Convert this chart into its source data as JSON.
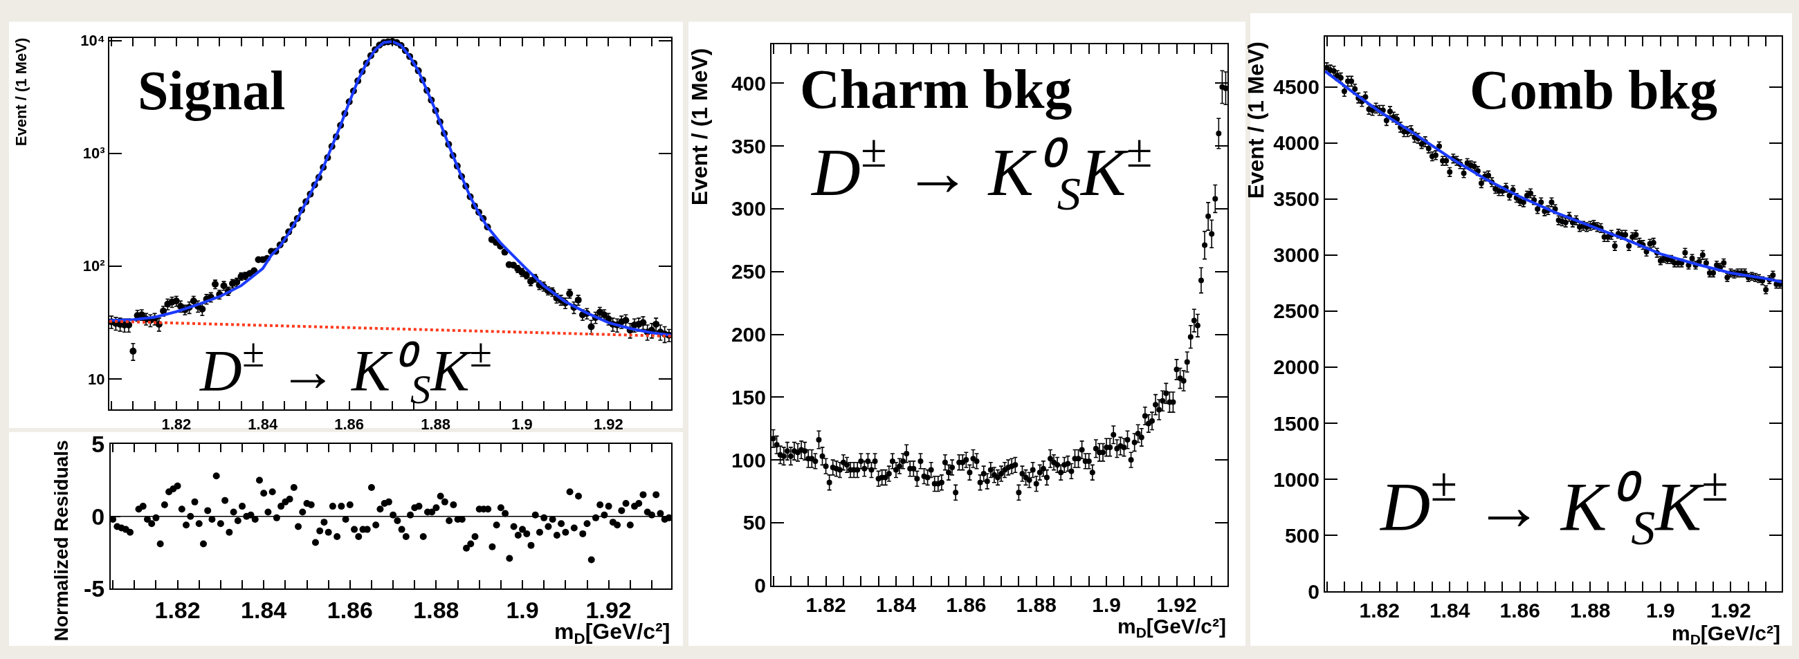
{
  "chart_data": [
    {
      "type": "scatter",
      "title": "Signal",
      "annotations": [
        "D$^{±}$ → K⁰$_{S}$K$^{±}$"
      ],
      "ylabel": "Event / (1 MeV)",
      "log": true,
      "x": [
        1.805,
        1.806,
        1.807,
        1.808,
        1.809,
        1.81,
        1.811,
        1.812,
        1.813,
        1.814,
        1.815,
        1.816,
        1.817,
        1.818,
        1.819,
        1.82,
        1.821,
        1.822,
        1.823,
        1.824,
        1.825,
        1.826,
        1.827,
        1.828,
        1.829,
        1.83,
        1.831,
        1.832,
        1.833,
        1.834,
        1.835,
        1.836,
        1.837,
        1.838,
        1.839,
        1.84,
        1.841,
        1.842,
        1.843,
        1.844,
        1.845,
        1.846,
        1.847,
        1.848,
        1.849,
        1.85,
        1.851,
        1.852,
        1.853,
        1.854,
        1.855,
        1.856,
        1.857,
        1.858,
        1.859,
        1.86,
        1.861,
        1.862,
        1.863,
        1.864,
        1.865,
        1.866,
        1.867,
        1.868,
        1.869,
        1.87,
        1.871,
        1.872,
        1.873,
        1.874,
        1.875,
        1.876,
        1.877,
        1.878,
        1.879,
        1.88,
        1.881,
        1.882,
        1.883,
        1.884,
        1.885,
        1.886,
        1.887,
        1.888,
        1.889,
        1.89,
        1.891,
        1.892,
        1.893,
        1.894,
        1.895,
        1.896,
        1.897,
        1.898,
        1.899,
        1.9,
        1.901,
        1.902,
        1.903,
        1.904,
        1.905,
        1.906,
        1.907,
        1.908,
        1.909,
        1.91,
        1.911,
        1.912,
        1.913,
        1.914,
        1.915,
        1.916,
        1.917,
        1.918,
        1.919,
        1.92,
        1.921,
        1.922,
        1.923,
        1.924,
        1.925,
        1.926,
        1.927,
        1.928,
        1.929,
        1.93,
        1.931,
        1.932,
        1.933,
        1.934
      ],
      "xlim": [
        1.8045,
        1.9345
      ],
      "xticks": [
        {
          "value": 1.805,
          "label": null
        },
        {
          "value": 1.81,
          "label": null
        },
        {
          "value": 1.815,
          "label": null
        },
        1.82,
        {
          "value": 1.825,
          "label": null
        },
        {
          "value": 1.83,
          "label": null
        },
        {
          "value": 1.835,
          "label": null
        },
        1.84,
        {
          "value": 1.845,
          "label": null
        },
        {
          "value": 1.85,
          "label": null
        },
        {
          "value": 1.855,
          "label": null
        },
        1.86,
        {
          "value": 1.865,
          "label": null
        },
        {
          "value": 1.87,
          "label": null
        },
        {
          "value": 1.875,
          "label": null
        },
        1.88,
        {
          "value": 1.885,
          "label": null
        },
        {
          "value": 1.89,
          "label": null
        },
        {
          "value": 1.895,
          "label": null
        },
        1.9,
        {
          "value": 1.905,
          "label": null
        },
        {
          "value": 1.91,
          "label": null
        },
        {
          "value": 1.915,
          "label": null
        },
        1.92,
        {
          "value": 1.925,
          "label": null
        },
        {
          "value": 1.93,
          "label": null
        }
      ],
      "ylim": [
        5.35,
        10450
      ],
      "yticks": [
        10,
        {
          "value": 100,
          "label": "10²"
        },
        {
          "value": 1000,
          "label": "10³"
        },
        {
          "value": 10000,
          "label": "10⁴"
        }
      ],
      "series": [
        {
          "color": "#000000",
          "marker": "circle",
          "values": [
            32,
            31,
            30.5,
            30,
            30,
            17.6,
            36.5,
            37,
            34,
            33,
            34,
            30.5,
            40,
            46,
            48,
            49,
            44,
            41,
            43,
            49,
            44,
            41.5,
            51,
            53,
            69,
            56,
            67,
            60,
            70,
            72,
            81,
            82,
            86,
            91,
            114,
            114,
            117,
            135,
            135,
            154,
            172,
            201,
            232,
            264,
            314,
            372,
            434,
            524,
            611,
            751,
            915,
            1150,
            1400,
            1770,
            2250,
            2860,
            3570,
            4390,
            5300,
            6290,
            7340,
            8280,
            9100,
            9600,
            9750,
            9800,
            9600,
            9050,
            8150,
            7220,
            6290,
            5390,
            4470,
            3610,
            2960,
            2390,
            1900,
            1500,
            1200,
            955,
            771,
            622,
            511,
            412,
            341,
            300,
            264,
            222,
            172,
            162,
            150,
            133,
            103,
            102,
            94.5,
            88,
            83,
            73,
            78,
            68,
            66,
            60.5,
            59,
            52,
            50,
            47,
            57,
            43,
            50,
            37,
            38,
            29,
            35,
            39,
            37,
            34,
            30.5,
            30,
            32,
            33,
            27,
            30,
            30.5,
            31.5,
            26,
            27,
            30.5,
            26,
            25,
            24.4
          ],
          "errors": [
            4,
            4,
            4,
            4,
            4,
            3,
            4,
            4,
            4,
            4,
            4,
            4,
            4,
            5,
            5,
            5,
            5,
            4,
            5,
            5,
            5,
            5,
            5,
            5,
            6,
            5,
            6,
            5,
            6,
            6,
            6,
            6,
            null,
            null,
            null,
            null,
            null,
            null,
            null,
            null,
            null,
            null,
            null,
            null,
            null,
            null,
            null,
            null,
            null,
            null,
            null,
            null,
            null,
            null,
            null,
            null,
            null,
            null,
            null,
            null,
            null,
            null,
            null,
            null,
            null,
            null,
            null,
            null,
            null,
            null,
            null,
            null,
            null,
            null,
            null,
            null,
            null,
            null,
            null,
            null,
            null,
            null,
            null,
            null,
            null,
            null,
            null,
            null,
            null,
            null,
            null,
            null,
            null,
            null,
            7,
            7,
            6,
            6,
            6,
            6,
            6,
            5,
            5,
            5,
            5,
            5,
            5,
            5,
            5,
            4,
            4,
            4,
            4,
            4,
            4,
            4,
            4,
            4,
            4,
            4,
            4,
            4,
            4,
            4,
            4,
            4,
            4,
            4,
            4,
            3
          ]
        },
        {
          "type": "line",
          "color": "#1b3bff",
          "line_style": "solid",
          "x": [
            1.8045,
            1.81,
            1.815,
            1.82,
            1.825,
            1.83,
            1.835,
            1.84,
            1.842,
            1.844,
            1.846,
            1.848,
            1.85,
            1.852,
            1.854,
            1.856,
            1.858,
            1.86,
            1.862,
            1.864,
            1.866,
            1.868,
            1.87,
            1.872,
            1.874,
            1.876,
            1.878,
            1.88,
            1.882,
            1.884,
            1.886,
            1.888,
            1.89,
            1.892,
            1.895,
            1.9,
            1.905,
            1.91,
            1.915,
            1.92,
            1.925,
            1.93,
            1.9345
          ],
          "values": [
            32.9,
            33.5,
            35.2,
            39.4,
            45.6,
            53.6,
            67,
            95,
            125,
            150,
            195,
            262,
            366,
            520,
            750,
            1150,
            1770,
            2820,
            4390,
            6290,
            8280,
            9600,
            9800,
            9050,
            7220,
            5390,
            3610,
            2390,
            1500,
            955,
            622,
            412,
            295,
            222,
            161,
            103,
            67,
            48.4,
            38.4,
            31.5,
            28,
            25.6,
            24.4
          ]
        },
        {
          "type": "line",
          "color": "#ff3b1f",
          "line_style": "dotted",
          "x": [
            1.8045,
            1.9345
          ],
          "values": [
            32.4,
            23.9
          ]
        }
      ]
    },
    {
      "type": "scatter",
      "xlabel": "m$_{D}$[GeV/c²]",
      "ylabel": "Normalized Residuals",
      "marker": "circle",
      "color": "#000000",
      "x": [
        1.805,
        1.806,
        1.807,
        1.808,
        1.809,
        1.81,
        1.811,
        1.812,
        1.813,
        1.814,
        1.815,
        1.816,
        1.817,
        1.818,
        1.819,
        1.82,
        1.821,
        1.822,
        1.823,
        1.824,
        1.825,
        1.826,
        1.827,
        1.828,
        1.829,
        1.83,
        1.831,
        1.832,
        1.833,
        1.834,
        1.835,
        1.836,
        1.837,
        1.838,
        1.839,
        1.84,
        1.841,
        1.842,
        1.843,
        1.844,
        1.845,
        1.846,
        1.847,
        1.848,
        1.849,
        1.85,
        1.851,
        1.852,
        1.853,
        1.854,
        1.855,
        1.856,
        1.857,
        1.858,
        1.859,
        1.86,
        1.861,
        1.862,
        1.863,
        1.864,
        1.865,
        1.866,
        1.867,
        1.868,
        1.869,
        1.87,
        1.871,
        1.872,
        1.873,
        1.874,
        1.875,
        1.876,
        1.877,
        1.878,
        1.879,
        1.88,
        1.881,
        1.882,
        1.883,
        1.884,
        1.885,
        1.886,
        1.887,
        1.888,
        1.889,
        1.89,
        1.891,
        1.892,
        1.893,
        1.894,
        1.895,
        1.896,
        1.897,
        1.898,
        1.899,
        1.9,
        1.901,
        1.902,
        1.903,
        1.904,
        1.905,
        1.906,
        1.907,
        1.908,
        1.909,
        1.91,
        1.911,
        1.912,
        1.913,
        1.914,
        1.915,
        1.916,
        1.917,
        1.918,
        1.919,
        1.92,
        1.921,
        1.922,
        1.923,
        1.924,
        1.925,
        1.926,
        1.927,
        1.928,
        1.929,
        1.93,
        1.931,
        1.932,
        1.933,
        1.934
      ],
      "values": [
        -0.2,
        -0.7,
        -0.8,
        -0.9,
        -1.1,
        null,
        0.5,
        0.7,
        -0.2,
        -0.5,
        -0.1,
        -1.9,
        0.8,
        1.7,
        1.9,
        2.1,
        0.5,
        -0.6,
        0.0,
        1.0,
        -0.5,
        -1.9,
        0.4,
        -0.2,
        2.8,
        -0.5,
        1.1,
        -1.1,
        0.3,
        -0.3,
        0.7,
        0.0,
        0.1,
        -0.2,
        2.5,
        1.6,
        0.3,
        1.7,
        -0.1,
        0.7,
        1.0,
        1.2,
        2.0,
        -0.7,
        0.3,
        0.9,
        0.8,
        -1.8,
        -1.0,
        -0.4,
        -1.1,
        0.7,
        -1.4,
        0.7,
        -0.2,
        0.8,
        -0.9,
        -1.4,
        -0.9,
        -0.9,
        2.0,
        -0.6,
        0.5,
        0.9,
        1.0,
        0.1,
        -0.3,
        -0.9,
        -1.4,
        0.1,
        0.6,
        0.7,
        -1.4,
        0.3,
        0.3,
        0.6,
        1.4,
        1.0,
        -0.3,
        0.8,
        -0.2,
        -0.2,
        -2.2,
        -1.9,
        -1.4,
        0.5,
        0.5,
        0.5,
        -2.1,
        -0.6,
        0.6,
        0.2,
        -2.9,
        -0.7,
        -1.3,
        -0.9,
        -1.2,
        -2.0,
        0.1,
        -1.1,
        -0.1,
        -0.7,
        -0.2,
        -1.3,
        -0.5,
        -1.1,
        1.7,
        -0.8,
        1.4,
        -1.2,
        -0.5,
        -3.0,
        -0.1,
        0.8,
        0.1,
        0.7,
        -0.4,
        -0.6,
        0.4,
        0.9,
        -0.6,
        0.7,
        0.9,
        1.5,
        0.3,
        0.1,
        1.5,
        0.2,
        -0.2,
        -0.1
      ],
      "xlim": [
        1.8045,
        1.9345
      ],
      "xticks": [
        {
          "value": 1.805,
          "label": null
        },
        {
          "value": 1.81,
          "label": null
        },
        {
          "value": 1.815,
          "label": null
        },
        1.82,
        {
          "value": 1.825,
          "label": null
        },
        {
          "value": 1.83,
          "label": null
        },
        {
          "value": 1.835,
          "label": null
        },
        1.84,
        {
          "value": 1.845,
          "label": null
        },
        {
          "value": 1.85,
          "label": null
        },
        {
          "value": 1.855,
          "label": null
        },
        1.86,
        {
          "value": 1.865,
          "label": null
        },
        {
          "value": 1.87,
          "label": null
        },
        {
          "value": 1.875,
          "label": null
        },
        1.88,
        {
          "value": 1.885,
          "label": null
        },
        {
          "value": 1.89,
          "label": null
        },
        {
          "value": 1.895,
          "label": null
        },
        1.9,
        {
          "value": 1.905,
          "label": null
        },
        {
          "value": 1.91,
          "label": null
        },
        {
          "value": 1.915,
          "label": null
        },
        1.92,
        {
          "value": 1.925,
          "label": null
        },
        {
          "value": 1.93,
          "label": null
        }
      ],
      "ylim": [
        -5,
        5
      ],
      "yticks": [
        -5,
        0,
        5
      ],
      "ref_lines": [
        {
          "axis": "y",
          "value": 0,
          "color": "#000000"
        }
      ]
    },
    {
      "type": "scatter",
      "title": "Charm bkg",
      "annotations": [
        "D$^{±}$ → K⁰$_{S}$K$^{±}$"
      ],
      "xlabel": "m$_{D}$[GeV/c²]",
      "ylabel": "Event / (1 MeV)",
      "marker": "circle",
      "color": "#000000",
      "x": [
        1.805,
        1.806,
        1.807,
        1.808,
        1.809,
        1.81,
        1.811,
        1.812,
        1.813,
        1.814,
        1.815,
        1.816,
        1.817,
        1.818,
        1.819,
        1.82,
        1.821,
        1.822,
        1.823,
        1.824,
        1.825,
        1.826,
        1.827,
        1.828,
        1.829,
        1.83,
        1.831,
        1.832,
        1.833,
        1.834,
        1.835,
        1.836,
        1.837,
        1.838,
        1.839,
        1.84,
        1.841,
        1.842,
        1.843,
        1.844,
        1.845,
        1.846,
        1.847,
        1.848,
        1.849,
        1.85,
        1.851,
        1.852,
        1.853,
        1.854,
        1.855,
        1.856,
        1.857,
        1.858,
        1.859,
        1.86,
        1.861,
        1.862,
        1.863,
        1.864,
        1.865,
        1.866,
        1.867,
        1.868,
        1.869,
        1.87,
        1.871,
        1.872,
        1.873,
        1.874,
        1.875,
        1.876,
        1.877,
        1.878,
        1.879,
        1.88,
        1.881,
        1.882,
        1.883,
        1.884,
        1.885,
        1.886,
        1.887,
        1.888,
        1.889,
        1.89,
        1.891,
        1.892,
        1.893,
        1.894,
        1.895,
        1.896,
        1.897,
        1.898,
        1.899,
        1.9,
        1.901,
        1.902,
        1.903,
        1.904,
        1.905,
        1.906,
        1.907,
        1.908,
        1.909,
        1.91,
        1.911,
        1.912,
        1.913,
        1.914,
        1.915,
        1.916,
        1.917,
        1.918,
        1.919,
        1.92,
        1.921,
        1.922,
        1.923,
        1.924,
        1.925,
        1.926,
        1.927,
        1.928,
        1.929,
        1.93,
        1.931,
        1.932,
        1.933,
        1.934
      ],
      "values": [
        117,
        112,
        104,
        103,
        107,
        103,
        107,
        106,
        108,
        107,
        101,
        101,
        99,
        116,
        103,
        95,
        82,
        94,
        93,
        92,
        98,
        96,
        92,
        92,
        92,
        99,
        93,
        99,
        92,
        99,
        85,
        86,
        86,
        89,
        99,
        92,
        95,
        99,
        105,
        93,
        93,
        85,
        99,
        87,
        86,
        92,
        81,
        81,
        82,
        98,
        90,
        94,
        74,
        98,
        98,
        100,
        90,
        101,
        99,
        82,
        89,
        83,
        92,
        88,
        86,
        89,
        92,
        94,
        95,
        96,
        74,
        89,
        86,
        84,
        92,
        81,
        90,
        93,
        86,
        101,
        98,
        96,
        90,
        96,
        97,
        91,
        101,
        101,
        108,
        99,
        99,
        90,
        109,
        106,
        106,
        110,
        110,
        120,
        109,
        111,
        110,
        116,
        100,
        114,
        121,
        118,
        135,
        129,
        131,
        144,
        140,
        147,
        153,
        146,
        146,
        172,
        165,
        163,
        178,
        198,
        211,
        207,
        243,
        271,
        294,
        280,
        308,
        360,
        397,
        396
      ],
      "errors": [
        7,
        7,
        7,
        7,
        7,
        7,
        7,
        7,
        7,
        7,
        7,
        7,
        6,
        7,
        7,
        6,
        6,
        6,
        6,
        6,
        6,
        6,
        6,
        6,
        6,
        6,
        6,
        6,
        6,
        6,
        6,
        6,
        6,
        6,
        6,
        6,
        6,
        6,
        7,
        6,
        6,
        6,
        6,
        6,
        6,
        6,
        6,
        6,
        6,
        6,
        6,
        6,
        6,
        6,
        6,
        6,
        6,
        7,
        6,
        6,
        6,
        6,
        6,
        6,
        6,
        6,
        6,
        6,
        6,
        6,
        6,
        6,
        6,
        6,
        6,
        6,
        6,
        6,
        6,
        7,
        6,
        6,
        6,
        6,
        6,
        6,
        7,
        7,
        7,
        6,
        6,
        6,
        7,
        7,
        7,
        7,
        7,
        7,
        7,
        7,
        7,
        7,
        6,
        7,
        7,
        7,
        7,
        7,
        7,
        8,
        8,
        8,
        8,
        8,
        8,
        8,
        8,
        8,
        8,
        9,
        9,
        9,
        10,
        11,
        11,
        11,
        11,
        12,
        13,
        13
      ],
      "xlim": [
        1.8045,
        1.9345
      ],
      "xticks": [
        {
          "value": 1.805,
          "label": null
        },
        {
          "value": 1.81,
          "label": null
        },
        {
          "value": 1.815,
          "label": null
        },
        1.82,
        {
          "value": 1.825,
          "label": null
        },
        {
          "value": 1.83,
          "label": null
        },
        {
          "value": 1.835,
          "label": null
        },
        1.84,
        {
          "value": 1.845,
          "label": null
        },
        {
          "value": 1.85,
          "label": null
        },
        {
          "value": 1.855,
          "label": null
        },
        1.86,
        {
          "value": 1.865,
          "label": null
        },
        {
          "value": 1.87,
          "label": null
        },
        {
          "value": 1.875,
          "label": null
        },
        1.88,
        {
          "value": 1.885,
          "label": null
        },
        {
          "value": 1.89,
          "label": null
        },
        {
          "value": 1.895,
          "label": null
        },
        1.9,
        {
          "value": 1.905,
          "label": null
        },
        {
          "value": 1.91,
          "label": null
        },
        {
          "value": 1.915,
          "label": null
        },
        1.92,
        {
          "value": 1.925,
          "label": null
        },
        {
          "value": 1.93,
          "label": null
        }
      ],
      "ylim": [
        0,
        431
      ],
      "yticks": [
        0,
        50,
        100,
        150,
        200,
        250,
        300,
        350,
        400
      ]
    },
    {
      "type": "scatter",
      "title": "Comb bkg",
      "annotations": [
        "D$^{±}$ → K⁰$_{S}$K$^{±}$"
      ],
      "xlabel": "m$_{D}$[GeV/c²]",
      "ylabel": "Event / (1 MeV)",
      "x": [
        1.805,
        1.806,
        1.807,
        1.808,
        1.809,
        1.81,
        1.811,
        1.812,
        1.813,
        1.814,
        1.815,
        1.816,
        1.817,
        1.818,
        1.819,
        1.82,
        1.821,
        1.822,
        1.823,
        1.824,
        1.825,
        1.826,
        1.827,
        1.828,
        1.829,
        1.83,
        1.831,
        1.832,
        1.833,
        1.834,
        1.835,
        1.836,
        1.837,
        1.838,
        1.839,
        1.84,
        1.841,
        1.842,
        1.843,
        1.844,
        1.845,
        1.846,
        1.847,
        1.848,
        1.849,
        1.85,
        1.851,
        1.852,
        1.853,
        1.854,
        1.855,
        1.856,
        1.857,
        1.858,
        1.859,
        1.86,
        1.861,
        1.862,
        1.863,
        1.864,
        1.865,
        1.866,
        1.867,
        1.868,
        1.869,
        1.87,
        1.871,
        1.872,
        1.873,
        1.874,
        1.875,
        1.876,
        1.877,
        1.878,
        1.879,
        1.88,
        1.881,
        1.882,
        1.883,
        1.884,
        1.885,
        1.886,
        1.887,
        1.888,
        1.889,
        1.89,
        1.891,
        1.892,
        1.893,
        1.894,
        1.895,
        1.896,
        1.897,
        1.898,
        1.899,
        1.9,
        1.901,
        1.902,
        1.903,
        1.904,
        1.905,
        1.906,
        1.907,
        1.908,
        1.909,
        1.91,
        1.911,
        1.912,
        1.913,
        1.914,
        1.915,
        1.916,
        1.917,
        1.918,
        1.919,
        1.92,
        1.921,
        1.922,
        1.923,
        1.924,
        1.925,
        1.926,
        1.927,
        1.928,
        1.929,
        1.93,
        1.931,
        1.932,
        1.933,
        1.934
      ],
      "xlim": [
        1.8045,
        1.9345
      ],
      "xticks": [
        {
          "value": 1.805,
          "label": null
        },
        {
          "value": 1.81,
          "label": null
        },
        {
          "value": 1.815,
          "label": null
        },
        1.82,
        {
          "value": 1.825,
          "label": null
        },
        {
          "value": 1.83,
          "label": null
        },
        {
          "value": 1.835,
          "label": null
        },
        1.84,
        {
          "value": 1.845,
          "label": null
        },
        {
          "value": 1.85,
          "label": null
        },
        {
          "value": 1.855,
          "label": null
        },
        1.86,
        {
          "value": 1.865,
          "label": null
        },
        {
          "value": 1.87,
          "label": null
        },
        {
          "value": 1.875,
          "label": null
        },
        1.88,
        {
          "value": 1.885,
          "label": null
        },
        {
          "value": 1.89,
          "label": null
        },
        {
          "value": 1.895,
          "label": null
        },
        1.9,
        {
          "value": 1.905,
          "label": null
        },
        {
          "value": 1.91,
          "label": null
        },
        {
          "value": 1.915,
          "label": null
        },
        1.92,
        {
          "value": 1.925,
          "label": null
        },
        {
          "value": 1.93,
          "label": null
        }
      ],
      "ylim": [
        0,
        4950
      ],
      "yticks": [
        0,
        500,
        1000,
        1500,
        2000,
        2500,
        3000,
        3500,
        4000,
        4500
      ],
      "series": [
        {
          "color": "#000000",
          "marker": "circle",
          "values": [
            4670,
            4650,
            4640,
            4600,
            4580,
            4460,
            4550,
            4550,
            4480,
            4400,
            4370,
            4410,
            4300,
            4290,
            4310,
            4290,
            4290,
            4200,
            4280,
            4230,
            4210,
            4140,
            4100,
            4100,
            4110,
            4050,
            4040,
            3990,
            4010,
            3950,
            3880,
            3890,
            3970,
            3840,
            3840,
            3740,
            3860,
            3840,
            3810,
            3730,
            3820,
            3800,
            3790,
            3750,
            3640,
            3700,
            3710,
            3650,
            3590,
            3570,
            3570,
            3600,
            3530,
            3580,
            3510,
            3480,
            3470,
            3530,
            3550,
            3490,
            3410,
            3470,
            3390,
            3400,
            3470,
            3410,
            3310,
            3300,
            3290,
            3340,
            3290,
            3310,
            3250,
            3260,
            3250,
            3260,
            3270,
            3250,
            3240,
            3160,
            3160,
            3180,
            3080,
            3190,
            3180,
            3180,
            3080,
            3160,
            3180,
            3110,
            3090,
            3030,
            3100,
            3110,
            3020,
            2950,
            2970,
            2960,
            2960,
            2930,
            2930,
            2930,
            3020,
            2910,
            2970,
            2910,
            2940,
            3000,
            2930,
            2840,
            2840,
            2910,
            2890,
            2930,
            2800,
            2840,
            2830,
            2840,
            2840,
            2840,
            2800,
            2810,
            2800,
            2790,
            2770,
            2690,
            2780,
            2820,
            2740,
            2740
          ],
          "errors": [
            44,
            44,
            44,
            44,
            44,
            44,
            44,
            44,
            44,
            44,
            44,
            44,
            44,
            44,
            44,
            44,
            44,
            44,
            44,
            44,
            44,
            44,
            44,
            44,
            44,
            44,
            44,
            39,
            44,
            39,
            39,
            39,
            39,
            39,
            39,
            39,
            39,
            39,
            39,
            39,
            39,
            39,
            39,
            39,
            39,
            39,
            39,
            39,
            39,
            39,
            39,
            39,
            39,
            39,
            39,
            39,
            39,
            39,
            39,
            39,
            39,
            39,
            39,
            39,
            39,
            39,
            39,
            39,
            39,
            39,
            39,
            39,
            39,
            39,
            39,
            39,
            39,
            39,
            39,
            39,
            39,
            39,
            39,
            39,
            39,
            39,
            39,
            39,
            39,
            39,
            39,
            39,
            39,
            39,
            39,
            35,
            35,
            35,
            35,
            35,
            35,
            35,
            39,
            35,
            35,
            35,
            35,
            39,
            35,
            35,
            35,
            35,
            35,
            35,
            35,
            35,
            35,
            35,
            35,
            35,
            35,
            35,
            35,
            35,
            35,
            35,
            35,
            35,
            35,
            35
          ]
        },
        {
          "type": "line",
          "color": "#1b3bff",
          "line_style": "solid",
          "x": [
            1.8045,
            1.8125,
            1.82,
            1.83,
            1.84,
            1.85,
            1.86,
            1.87,
            1.88,
            1.89,
            1.9,
            1.91,
            1.92,
            1.93,
            1.9345
          ],
          "values": [
            4640,
            4450,
            4280,
            4080,
            3870,
            3680,
            3520,
            3380,
            3260,
            3140,
            3010,
            2920,
            2840,
            2790,
            2760
          ]
        }
      ]
    }
  ]
}
